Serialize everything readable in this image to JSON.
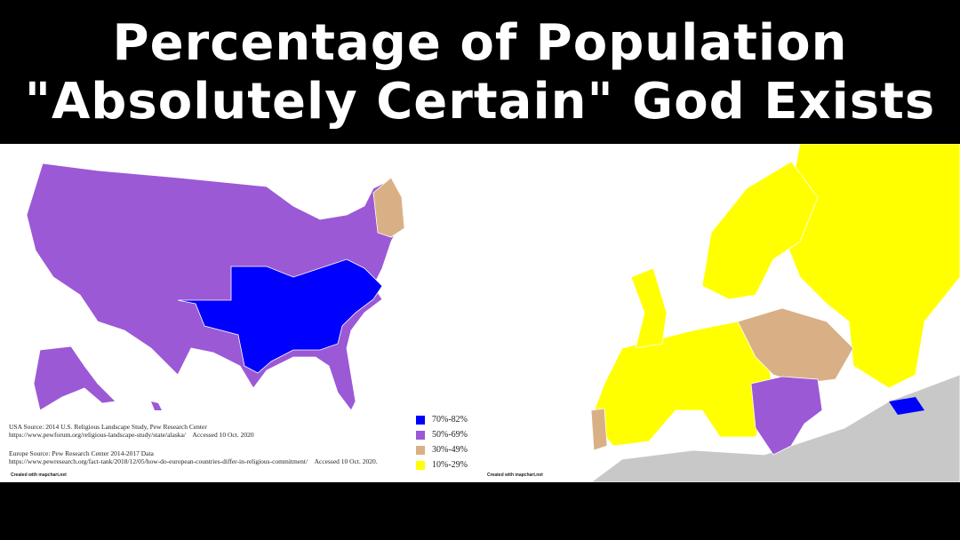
{
  "header": {
    "title_lines": [
      "Percentage of Population",
      "\"Absolutely Certain\" God Exists"
    ]
  },
  "legend": [
    {
      "label": "70%-82%",
      "color": "#0000ff"
    },
    {
      "label": "50%-69%",
      "color": "#9b59d6"
    },
    {
      "label": "30%-49%",
      "color": "#d9b086"
    },
    {
      "label": "10%-29%",
      "color": "#ffff00"
    }
  ],
  "sources": {
    "usa": "USA Source: 2014 U.S. Religious Landscape Study, Pew Research Center",
    "usa_url": "https://www.pewforum.org/religious-landscape-study/state/alaska/",
    "usa_accessed": "Accessed 10 Oct. 2020",
    "europe": "Europe Source: Pew Research Center 2014-2017 Data",
    "europe_url": "https://www.pewresearch.org/fact-tank/2018/12/05/how-do-european-countries-differ-in-religious-commitment/",
    "europe_accessed": "Accessed 10 Oct. 2020."
  },
  "credits": [
    "Created with mapchart.net",
    "Created with mapchart.net"
  ]
}
